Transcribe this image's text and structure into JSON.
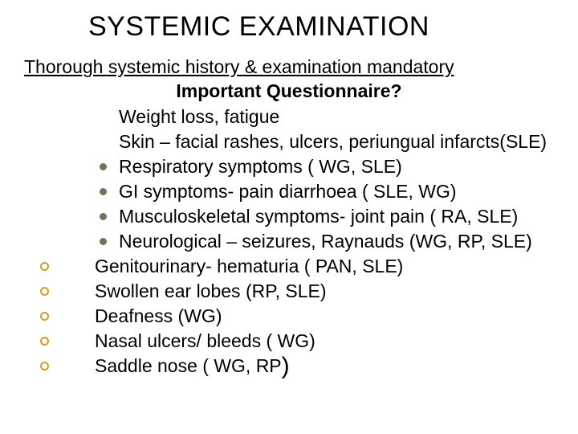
{
  "colors": {
    "text": "#000000",
    "background": "#ffffff",
    "outer_bullet_border": "#d2a020",
    "inner_bullet_fill": "#6a775a"
  },
  "fonts": {
    "title_family": "Arial",
    "title_size_pt": 34,
    "title_weight": 400,
    "body_family": "Verdana",
    "body_size_pt": 23,
    "subheading_weight": 700
  },
  "title": "SYSTEMIC EXAMINATION",
  "lead": "Thorough systemic history & examination mandatory",
  "subheading": "Important Questionnaire?",
  "inner_items": [
    {
      "show_bullet": false,
      "text": "Weight loss, fatigue"
    },
    {
      "show_bullet": false,
      "text": "Skin – facial rashes, ulcers, periungual infarcts(SLE)"
    },
    {
      "show_bullet": true,
      "text": "Respiratory symptoms ( WG, SLE)"
    },
    {
      "show_bullet": true,
      "text": "GI symptoms- pain diarrhoea ( SLE, WG)"
    },
    {
      "show_bullet": true,
      "text": "Musculoskeletal symptoms- joint pain ( RA, SLE)"
    },
    {
      "show_bullet": true,
      "text": "Neurological – seizures, Raynauds (WG, RP, SLE)"
    }
  ],
  "outer_items": [
    "Genitourinary- hematuria ( PAN, SLE)",
    "Swollen ear lobes (RP, SLE)",
    "Deafness (WG)",
    "Nasal ulcers/ bleeds ( WG)"
  ],
  "last_item": {
    "prefix": "Saddle nose ( WG, RP",
    "big_paren": ")"
  }
}
